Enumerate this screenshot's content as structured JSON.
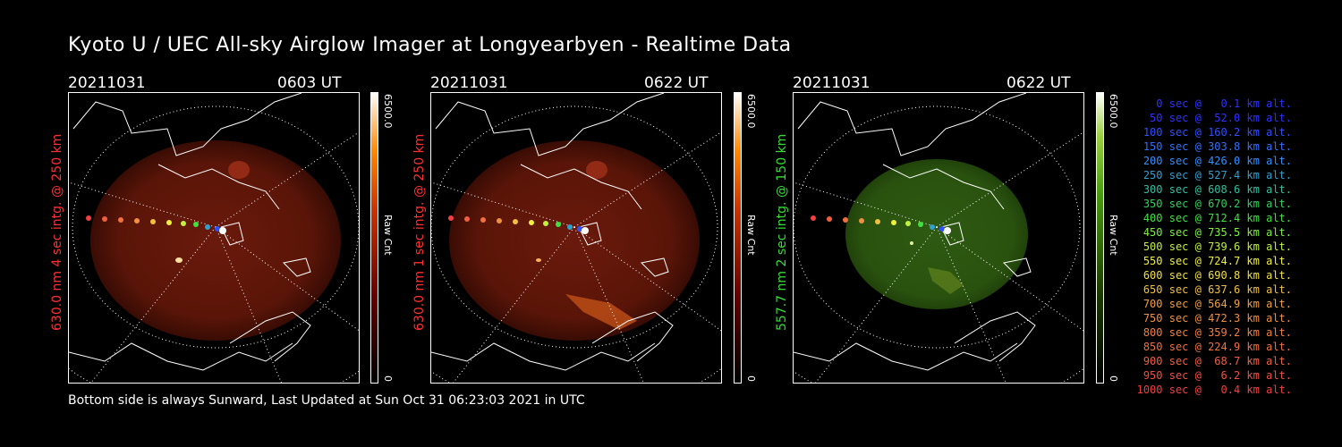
{
  "title": "Kyoto U / UEC All-sky Airglow Imager at Longyearbyen - Realtime Data",
  "footer": "Bottom side is always Sunward, Last Updated at Sun Oct 31 06:23:03 2021 in UTC",
  "colors": {
    "red": "#ff3030",
    "green": "#33dd33",
    "background": "#000000"
  },
  "panels": [
    {
      "date": "20211031",
      "time": "0603 UT",
      "side_label": "630.0 nm 4 sec intg. @ 250 km",
      "cbar_max": "6500.0",
      "cbar_min": "0",
      "cbar_unit": "Raw Cnt",
      "side_label_color": "#ff3030",
      "glow": "red"
    },
    {
      "date": "20211031",
      "time": "0622 UT",
      "side_label": "630.0 nm 1 sec intg. @ 250 km",
      "cbar_max": "6500.0",
      "cbar_min": "0",
      "cbar_unit": "Raw Cnt",
      "side_label_color": "#ff3030",
      "glow": "red"
    },
    {
      "date": "20211031",
      "time": "0622 UT",
      "side_label": "557.7 nm 2 sec intg. @ 150 km",
      "cbar_max": "6500.0",
      "cbar_min": "0",
      "cbar_unit": "Raw Cnt",
      "side_label_color": "#33dd33",
      "glow": "green"
    }
  ],
  "legend": [
    {
      "text": "0 sec @   0.1 km alt.",
      "color": "#3030ff"
    },
    {
      "text": "50 sec @  52.0 km alt.",
      "color": "#3030ff"
    },
    {
      "text": "100 sec @ 160.2 km alt.",
      "color": "#3050ff"
    },
    {
      "text": "150 sec @ 303.8 km alt.",
      "color": "#3070ff"
    },
    {
      "text": "200 sec @ 426.0 km alt.",
      "color": "#3090ff"
    },
    {
      "text": "250 sec @ 527.4 km alt.",
      "color": "#30a0d0"
    },
    {
      "text": "300 sec @ 608.6 km alt.",
      "color": "#30c0a0"
    },
    {
      "text": "350 sec @ 670.2 km alt.",
      "color": "#30d060"
    },
    {
      "text": "400 sec @ 712.4 km alt.",
      "color": "#40e040"
    },
    {
      "text": "450 sec @ 735.5 km alt.",
      "color": "#80f040"
    },
    {
      "text": "500 sec @ 739.6 km alt.",
      "color": "#c0f040"
    },
    {
      "text": "550 sec @ 724.7 km alt.",
      "color": "#f0f040"
    },
    {
      "text": "600 sec @ 690.8 km alt.",
      "color": "#f0e040"
    },
    {
      "text": "650 sec @ 637.6 km alt.",
      "color": "#f0c040"
    },
    {
      "text": "700 sec @ 564.9 km alt.",
      "color": "#f0a040"
    },
    {
      "text": "750 sec @ 472.3 km alt.",
      "color": "#f09040"
    },
    {
      "text": "800 sec @ 359.2 km alt.",
      "color": "#f08040"
    },
    {
      "text": "850 sec @ 224.9 km alt.",
      "color": "#f07040"
    },
    {
      "text": "900 sec @  68.7 km alt.",
      "color": "#f06040"
    },
    {
      "text": "950 sec @   6.2 km alt.",
      "color": "#f05040"
    },
    {
      "text": "1000 sec @   0.4 km alt.",
      "color": "#f04040"
    }
  ]
}
